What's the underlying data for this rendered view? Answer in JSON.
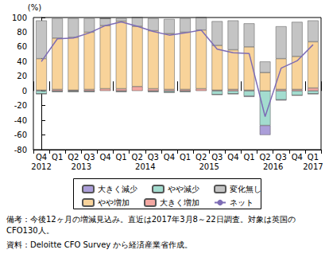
{
  "chart_data": {
    "type": "bar",
    "stacked": true,
    "grid": false,
    "y_label": "(%)",
    "categories": [
      "Q4",
      "Q1",
      "Q2",
      "Q3",
      "Q4",
      "Q1",
      "Q2",
      "Q3",
      "Q4",
      "Q1",
      "Q2",
      "Q3",
      "Q4",
      "Q1",
      "Q2",
      "Q3",
      "Q4",
      "Q1"
    ],
    "years": [
      {
        "label": "2012",
        "span": 1
      },
      {
        "label": "2013",
        "span": 4
      },
      {
        "label": "2014",
        "span": 4
      },
      {
        "label": "2015",
        "span": 4
      },
      {
        "label": "2016",
        "span": 4
      },
      {
        "label": "2017",
        "span": 1
      }
    ],
    "ylim": [
      -80,
      100
    ],
    "yticks": [
      -80,
      -60,
      -40,
      -20,
      0,
      20,
      40,
      60,
      80,
      100
    ],
    "series": [
      {
        "name": "大きく増加",
        "color": "#f4a8a2",
        "values": [
          1,
          2,
          1,
          2,
          3,
          3,
          6,
          3,
          2,
          2,
          3,
          1,
          2,
          1,
          0,
          2,
          2,
          4
        ]
      },
      {
        "name": "やや増加",
        "color": "#f8d39a",
        "values": [
          43,
          70,
          72,
          78,
          86,
          92,
          82,
          79,
          76,
          78,
          80,
          61,
          54,
          59,
          25,
          42,
          45,
          63
        ]
      },
      {
        "name": "変化無し",
        "color": "#c4c4c4",
        "values": [
          52,
          27,
          26,
          19,
          10,
          4,
          12,
          17,
          20,
          19,
          17,
          33,
          40,
          32,
          15,
          44,
          47,
          29
        ]
      },
      {
        "name": "やや減少",
        "color": "#a3dccf",
        "values": [
          -4,
          -1,
          -1,
          -1,
          0,
          -1,
          0,
          -1,
          -2,
          -1,
          0,
          -5,
          -4,
          -7,
          -47,
          -12,
          -6,
          -4
        ]
      },
      {
        "name": "大きく減少",
        "color": "#ab9ed9",
        "values": [
          0,
          0,
          0,
          0,
          0,
          0,
          0,
          0,
          0,
          0,
          0,
          0,
          0,
          -1,
          -13,
          -1,
          0,
          0
        ]
      },
      {
        "name": "ネット",
        "color": "#7d6cb5",
        "type": "line",
        "values": [
          40,
          71,
          72,
          79,
          89,
          94,
          88,
          81,
          76,
          79,
          83,
          57,
          52,
          51,
          -35,
          31,
          41,
          63
        ]
      }
    ],
    "legend_rows": [
      [
        "大きく減少",
        "やや減少",
        "変化無し"
      ],
      [
        "やや増加",
        "大きく増加",
        "ネット"
      ]
    ],
    "notes": [
      "備考：今後12ヶ月の増減見込み。直近は2017年3月8～22日調査。対象は英国のCFO130人。",
      "資料：Deloitte CFO Survey から経済産業省作成。"
    ]
  }
}
